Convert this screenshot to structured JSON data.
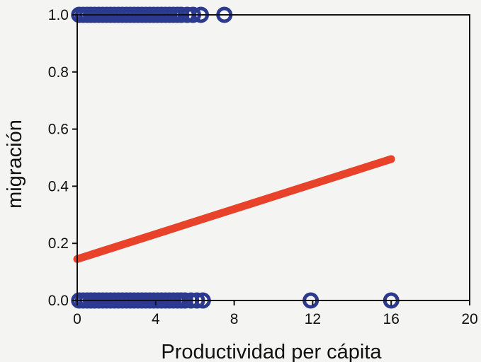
{
  "chart_data": {
    "type": "scatter",
    "title": "",
    "xlabel": "Productividad per cápita",
    "ylabel": "migración",
    "xlim": [
      0,
      20
    ],
    "ylim": [
      0,
      1
    ],
    "x_ticks": [
      "0",
      "4",
      "8",
      "12",
      "16",
      "20"
    ],
    "y_ticks": [
      "0.0",
      "0.2",
      "0.4",
      "0.6",
      "0.8",
      "1.0"
    ],
    "grid": false,
    "legend": "none",
    "series": [
      {
        "kind": "points",
        "color": "#2b3a8f",
        "points": [
          [
            0.1,
            1
          ],
          [
            0.3,
            1
          ],
          [
            0.5,
            1
          ],
          [
            0.7,
            1
          ],
          [
            0.9,
            1
          ],
          [
            1.1,
            1
          ],
          [
            1.3,
            1
          ],
          [
            1.5,
            1
          ],
          [
            1.7,
            1
          ],
          [
            1.9,
            1
          ],
          [
            2.1,
            1
          ],
          [
            2.3,
            1
          ],
          [
            2.5,
            1
          ],
          [
            2.7,
            1
          ],
          [
            2.9,
            1
          ],
          [
            3.1,
            1
          ],
          [
            3.3,
            1
          ],
          [
            3.5,
            1
          ],
          [
            3.7,
            1
          ],
          [
            3.9,
            1
          ],
          [
            4.1,
            1
          ],
          [
            4.3,
            1
          ],
          [
            4.5,
            1
          ],
          [
            4.7,
            1
          ],
          [
            4.9,
            1
          ],
          [
            5.1,
            1
          ],
          [
            5.3,
            1
          ],
          [
            5.6,
            1
          ],
          [
            5.9,
            1
          ],
          [
            6.3,
            1
          ],
          [
            7.5,
            1
          ],
          [
            0.1,
            0
          ],
          [
            0.3,
            0
          ],
          [
            0.5,
            0
          ],
          [
            0.7,
            0
          ],
          [
            0.9,
            0
          ],
          [
            1.1,
            0
          ],
          [
            1.3,
            0
          ],
          [
            1.5,
            0
          ],
          [
            1.7,
            0
          ],
          [
            1.9,
            0
          ],
          [
            2.1,
            0
          ],
          [
            2.3,
            0
          ],
          [
            2.5,
            0
          ],
          [
            2.7,
            0
          ],
          [
            2.9,
            0
          ],
          [
            3.1,
            0
          ],
          [
            3.3,
            0
          ],
          [
            3.5,
            0
          ],
          [
            3.7,
            0
          ],
          [
            3.9,
            0
          ],
          [
            4.1,
            0
          ],
          [
            4.3,
            0
          ],
          [
            4.5,
            0
          ],
          [
            4.7,
            0
          ],
          [
            4.9,
            0
          ],
          [
            5.1,
            0
          ],
          [
            5.3,
            0
          ],
          [
            5.5,
            0
          ],
          [
            5.8,
            0
          ],
          [
            6.1,
            0
          ],
          [
            6.4,
            0
          ],
          [
            11.9,
            0
          ],
          [
            16.0,
            0
          ]
        ]
      },
      {
        "kind": "line",
        "color": "#e8432a",
        "points": [
          [
            0,
            0.145
          ],
          [
            16,
            0.495
          ]
        ]
      }
    ]
  }
}
